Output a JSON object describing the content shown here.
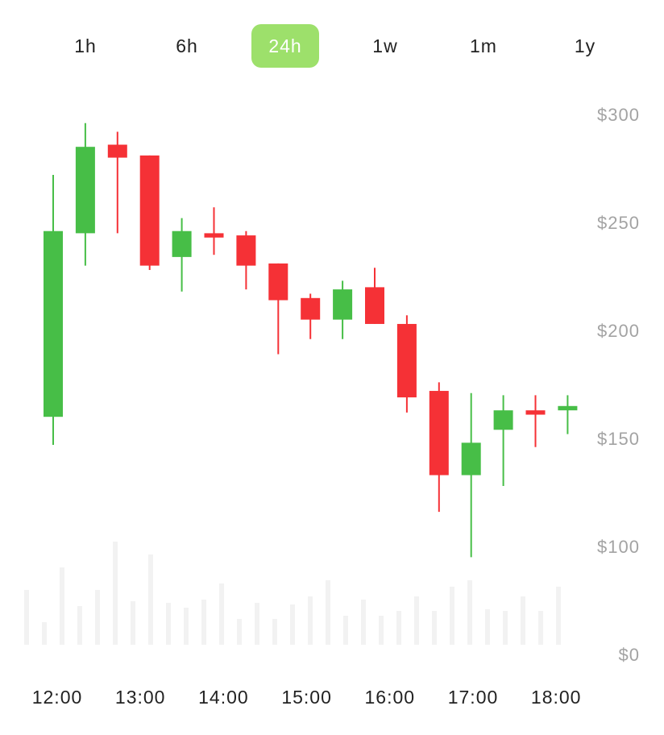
{
  "range_tabs": [
    {
      "label": "1h",
      "active": false
    },
    {
      "label": "6h",
      "active": false
    },
    {
      "label": "24h",
      "active": true
    },
    {
      "label": "1w",
      "active": false
    },
    {
      "label": "1m",
      "active": false
    },
    {
      "label": "1y",
      "active": false
    }
  ],
  "colors": {
    "up": "#47be47",
    "down": "#f53136",
    "active_tab": "#9de06b",
    "volume": "#f2f2f2",
    "axis_text": "#a3a3a3"
  },
  "chart_data": {
    "type": "candlestick",
    "y_ticks": [
      "$300",
      "$250",
      "$200",
      "$150",
      "$100"
    ],
    "y_tick_values": [
      300,
      250,
      200,
      150,
      100
    ],
    "volume_zero_label": "$0",
    "x_ticks": [
      "12:00",
      "13:00",
      "14:00",
      "15:00",
      "16:00",
      "17:00",
      "18:00"
    ],
    "ylim": [
      100,
      300
    ],
    "grid": false,
    "candles": [
      {
        "open": 160,
        "close": 246,
        "high": 272,
        "low": 147
      },
      {
        "open": 245,
        "close": 285,
        "high": 296,
        "low": 230
      },
      {
        "open": 286,
        "close": 280,
        "high": 292,
        "low": 245
      },
      {
        "open": 281,
        "close": 230,
        "high": 281,
        "low": 228
      },
      {
        "open": 234,
        "close": 246,
        "high": 252,
        "low": 218
      },
      {
        "open": 245,
        "close": 243,
        "high": 257,
        "low": 235
      },
      {
        "open": 244,
        "close": 230,
        "high": 246,
        "low": 219
      },
      {
        "open": 231,
        "close": 214,
        "high": 231,
        "low": 189
      },
      {
        "open": 215,
        "close": 205,
        "high": 217,
        "low": 196
      },
      {
        "open": 205,
        "close": 219,
        "high": 223,
        "low": 196
      },
      {
        "open": 220,
        "close": 203,
        "high": 229,
        "low": 203
      },
      {
        "open": 203,
        "close": 169,
        "high": 207,
        "low": 162
      },
      {
        "open": 172,
        "close": 133,
        "high": 176,
        "low": 116
      },
      {
        "open": 133,
        "close": 148,
        "high": 171,
        "low": 95
      },
      {
        "open": 154,
        "close": 163,
        "high": 170,
        "low": 128
      },
      {
        "open": 163,
        "close": 161,
        "high": 170,
        "low": 146
      },
      {
        "open": 163,
        "close": 165,
        "high": 170,
        "low": 152
      }
    ],
    "volume": [
      68,
      28,
      96,
      48,
      68,
      128,
      54,
      112,
      52,
      46,
      56,
      76,
      32,
      52,
      32,
      50,
      60,
      80,
      36,
      56,
      36,
      42,
      60,
      42,
      72,
      80,
      44,
      42,
      60,
      42,
      72
    ]
  }
}
